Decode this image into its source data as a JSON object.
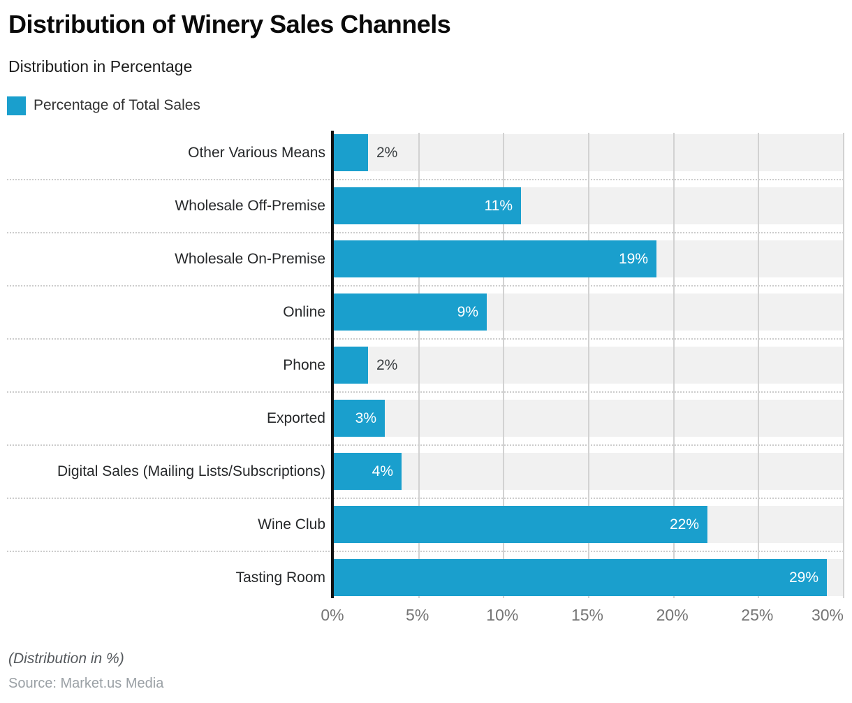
{
  "header": {
    "title": "Distribution of Winery Sales Channels",
    "subtitle": "Distribution in Percentage"
  },
  "legend": {
    "label": "Percentage of Total Sales"
  },
  "chart_data": {
    "type": "bar",
    "orientation": "horizontal",
    "title": "Distribution of Winery Sales Channels",
    "subtitle": "Distribution in Percentage",
    "series_name": "Percentage of Total Sales",
    "categories": [
      "Other Various Means",
      "Wholesale Off-Premise",
      "Wholesale On-Premise",
      "Online",
      "Phone",
      "Exported",
      "Digital Sales (Mailing Lists/Subscriptions)",
      "Wine Club",
      "Tasting Room"
    ],
    "values": [
      2,
      11,
      19,
      9,
      2,
      3,
      4,
      22,
      29
    ],
    "value_suffix": "%",
    "xlim": [
      0,
      30
    ],
    "x_tick_step": 5,
    "x_ticks": [
      "0%",
      "5%",
      "10%",
      "15%",
      "20%",
      "25%",
      "30%"
    ],
    "grid": "vertical",
    "legend_position": "top-left",
    "colors": {
      "bar": "#1A9FCD",
      "track": "#F1F1F1",
      "gridline": "#D2D2D2",
      "separator": "#CCCCCC",
      "label_inside": "#FFFFFF",
      "label_outside": "#3C4043",
      "axis_text": "#757575"
    }
  },
  "footer": {
    "note": "(Distribution in %)",
    "source": "Source: Market.us Media"
  }
}
